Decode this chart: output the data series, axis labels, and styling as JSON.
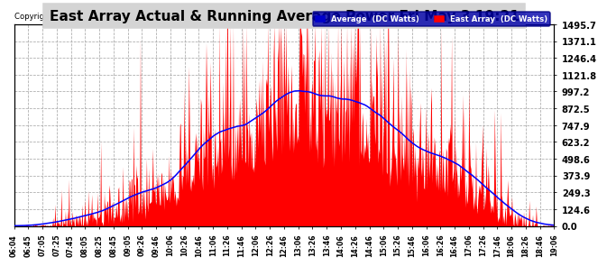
{
  "title": "East Array Actual & Running Average Power Fri May 3 19:21",
  "copyright": "Copyright 2013 Cartronics.com",
  "legend_avg": "Average  (DC Watts)",
  "legend_east": "East Array  (DC Watts)",
  "yticks": [
    0.0,
    124.6,
    249.3,
    373.9,
    498.6,
    623.2,
    747.9,
    872.5,
    997.2,
    1121.8,
    1246.4,
    1371.1,
    1495.7
  ],
  "ymax": 1495.7,
  "ymin": 0.0,
  "bg_color": "#ffffff",
  "plot_bg_color": "#ffffff",
  "grid_color": "#aaaaaa",
  "east_color": "#ff0000",
  "avg_color": "#0000ff",
  "title_color": "#000000",
  "title_bg": "#c0c0c0",
  "xtick_labels": [
    "06:04",
    "06:45",
    "07:05",
    "07:25",
    "07:45",
    "08:05",
    "08:25",
    "08:45",
    "09:05",
    "09:26",
    "09:46",
    "10:06",
    "10:26",
    "10:46",
    "11:06",
    "11:26",
    "11:46",
    "12:06",
    "12:26",
    "12:46",
    "13:06",
    "13:26",
    "13:46",
    "14:06",
    "14:26",
    "14:46",
    "15:06",
    "15:26",
    "15:46",
    "16:06",
    "16:26",
    "16:46",
    "17:06",
    "17:26",
    "17:46",
    "18:06",
    "18:26",
    "18:46",
    "19:06"
  ]
}
